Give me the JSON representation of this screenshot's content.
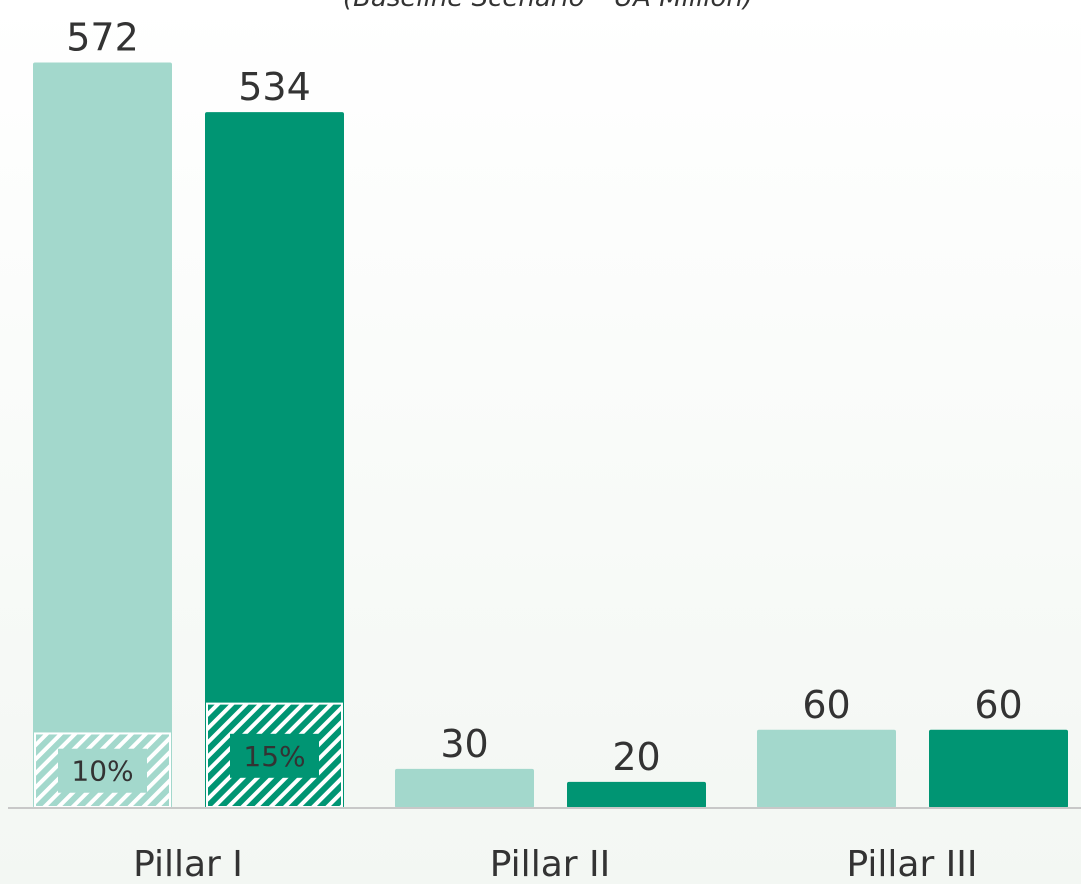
{
  "chart_data": {
    "type": "bar",
    "title": "(Baseline Scenario – UA Million)",
    "categories": [
      "Pillar I",
      "Pillar II",
      "Pillar III"
    ],
    "series": [
      {
        "color": "#a3d8cc",
        "values": [
          572,
          30,
          60
        ]
      },
      {
        "color": "#009573",
        "values": [
          534,
          20,
          60
        ]
      }
    ],
    "ylim": [
      0,
      620
    ],
    "hatched_shares": [
      {
        "series": 0,
        "category": 0,
        "value": 10,
        "label": "10%"
      },
      {
        "series": 1,
        "category": 0,
        "value": 15,
        "label": "15%"
      }
    ]
  }
}
